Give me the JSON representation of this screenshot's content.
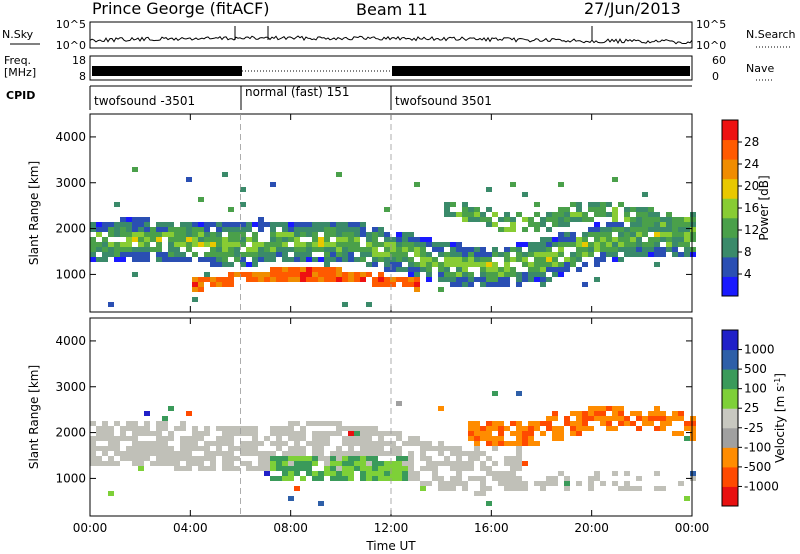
{
  "header": {
    "station": "Prince George (fitACF)",
    "beam": "Beam 11",
    "date": "27/Jun/2013"
  },
  "panels": {
    "nsky": {
      "label": "N.Sky",
      "ticks": [
        "10^5",
        "10^0"
      ],
      "right_label": "N.Search",
      "right_ticks": [
        "10^5",
        "10^0"
      ]
    },
    "freq": {
      "label_line1": "Freq.",
      "label_line2": "[MHz]",
      "ticks": [
        "18",
        "8"
      ],
      "right_label": "Nave",
      "right_ticks": [
        "60",
        "0"
      ]
    },
    "cpid": {
      "label": "CPID",
      "segments": [
        "twofsound -3501",
        "normal (fast) 151",
        "twofsound 3501"
      ]
    }
  },
  "colors": {
    "power": [
      "#1a1aff",
      "#2a4fb3",
      "#3a8a6a",
      "#4aa04a",
      "#88cc33",
      "#e8c800",
      "#f08c00",
      "#ff5a00",
      "#ee1111"
    ],
    "velocity": [
      "#e81010",
      "#ff4a00",
      "#ff8c00",
      "#a0a0a0",
      "#c8c8c0",
      "#7ed038",
      "#3a9a5a",
      "#2e5fa8",
      "#2020c8"
    ],
    "ground_scatter": "#c0c0b8"
  },
  "chart_data": [
    {
      "type": "heatmap",
      "name": "power",
      "ylabel": "Slant Range [km]",
      "xlabel": "",
      "xlim_hours": [
        0,
        24
      ],
      "ylim_km": [
        180,
        4500
      ],
      "yticks": [
        1000,
        2000,
        3000,
        4000
      ],
      "colorbar": {
        "label": "Power [dB]",
        "ticks": [
          4,
          8,
          12,
          16,
          20,
          24,
          28
        ],
        "range": [
          0,
          32
        ]
      },
      "features": [
        {
          "feature": "F-region band",
          "hours": [
            0,
            24
          ],
          "range_km": [
            1200,
            2100
          ],
          "power_db": 12
        },
        {
          "feature": "intense near-range echoes",
          "hours": [
            4,
            12
          ],
          "range_km": [
            600,
            1100
          ],
          "power_db": 28
        },
        {
          "feature": "upper scatter band",
          "hours": [
            14,
            24
          ],
          "range_km": [
            1900,
            2400
          ],
          "power_db": 14
        }
      ]
    },
    {
      "type": "heatmap",
      "name": "velocity",
      "ylabel": "Slant Range [km]",
      "xlabel": "Time UT",
      "xlim_hours": [
        0,
        24
      ],
      "ylim_km": [
        180,
        4500
      ],
      "yticks": [
        1000,
        2000,
        3000,
        4000
      ],
      "xticks": [
        "00:00",
        "04:00",
        "08:00",
        "12:00",
        "16:00",
        "20:00",
        "00:00"
      ],
      "colorbar": {
        "label": "Velocity [m s^-1]",
        "ticks": [
          "1000",
          "500",
          "100",
          "25",
          "-25",
          "-100",
          "-500",
          "-1000"
        ]
      },
      "features": [
        {
          "feature": "ground scatter",
          "hours": [
            0,
            16
          ],
          "range_km": [
            1000,
            2300
          ],
          "velocity_ms": 0
        },
        {
          "feature": "positive velocity echoes",
          "hours": [
            7,
            12
          ],
          "range_km": [
            900,
            1500
          ],
          "velocity_ms": 300
        },
        {
          "feature": "negative velocity echoes",
          "hours": [
            15,
            24
          ],
          "range_km": [
            1600,
            2600
          ],
          "velocity_ms": -400
        }
      ]
    }
  ]
}
